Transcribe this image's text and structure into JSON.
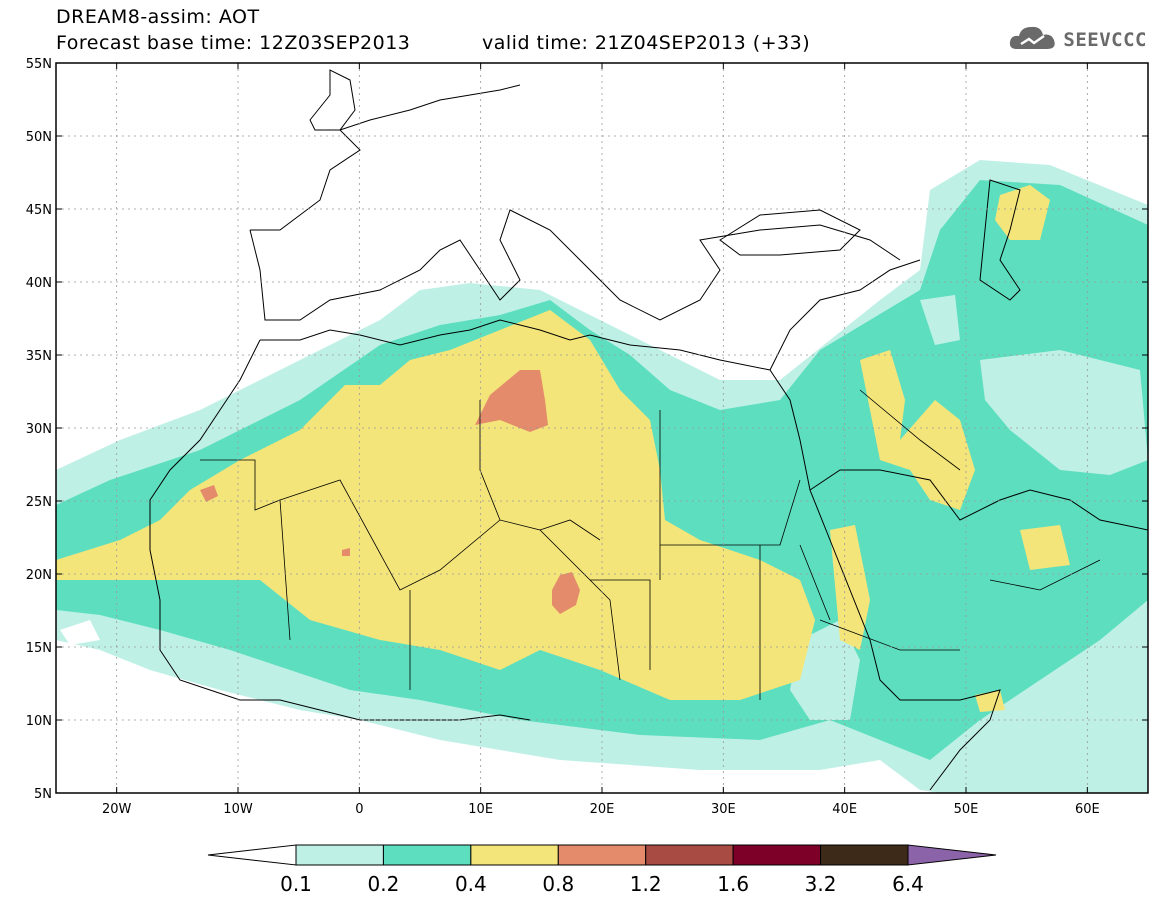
{
  "header": {
    "title": "DREAM8-assim: AOT",
    "base_time": "Forecast base time: 12Z03SEP2013",
    "valid_time": "valid time: 21Z04SEP2013 (+33)"
  },
  "logo": {
    "text": "SEEVCCC",
    "icon": "cloud-icon"
  },
  "map": {
    "lon_range": [
      -25,
      65
    ],
    "lat_range": [
      5,
      55
    ],
    "lat_ticks": [
      "5N",
      "10N",
      "15N",
      "20N",
      "25N",
      "30N",
      "35N",
      "40N",
      "45N",
      "50N",
      "55N"
    ],
    "lon_ticks": [
      "20W",
      "10W",
      "0",
      "10E",
      "20E",
      "30E",
      "40E",
      "50E",
      "60E"
    ]
  },
  "colorbar": {
    "labels": [
      "0.1",
      "0.2",
      "0.4",
      "0.8",
      "1.2",
      "1.6",
      "3.2",
      "6.4"
    ],
    "colors": [
      "#bff0e6",
      "#5ddfbf",
      "#f4e57a",
      "#e38b6b",
      "#a84b43",
      "#7d0028",
      "#3d2a18",
      "#8b63a8"
    ]
  }
}
